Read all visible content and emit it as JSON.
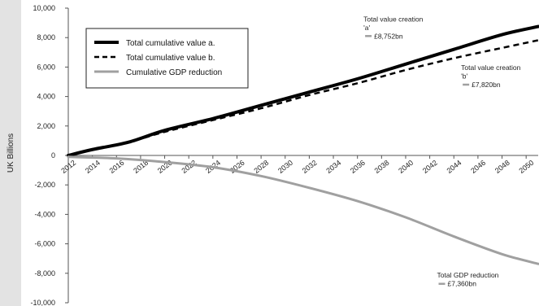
{
  "chart_data": {
    "type": "line",
    "ylabel": "UK Billions",
    "ylim": [
      -10000,
      10000
    ],
    "yticks": [
      10000,
      8000,
      6000,
      4000,
      2000,
      0,
      -2000,
      -4000,
      -6000,
      -8000,
      -10000
    ],
    "ytick_labels": [
      "10,000",
      "8,000",
      "6,000",
      "4,000",
      "2,000",
      "0",
      "-2,000",
      "-4,000",
      "-6,000",
      "-8,000",
      "-10,000"
    ],
    "xlim": [
      2012,
      2051
    ],
    "xticks": [
      2012,
      2014,
      2016,
      2018,
      2020,
      2022,
      2024,
      2026,
      2028,
      2030,
      2032,
      2034,
      2036,
      2038,
      2040,
      2042,
      2044,
      2046,
      2048,
      2050
    ],
    "legend_position": "top-left",
    "series": [
      {
        "name": "Total cumulative value a.",
        "style": "solid-thick",
        "color": "#000000",
        "x": [
          2012,
          2014,
          2017,
          2020,
          2024,
          2028,
          2032,
          2036,
          2040,
          2044,
          2048,
          2051
        ],
        "y": [
          0,
          400,
          900,
          1700,
          2500,
          3400,
          4300,
          5200,
          6200,
          7200,
          8200,
          8752
        ]
      },
      {
        "name": "Total cumulative value b.",
        "style": "dashed",
        "color": "#000000",
        "x": [
          2012,
          2014,
          2017,
          2020,
          2024,
          2028,
          2032,
          2036,
          2040,
          2044,
          2048,
          2051
        ],
        "y": [
          0,
          400,
          900,
          1600,
          2400,
          3200,
          4100,
          4900,
          5800,
          6600,
          7300,
          7820
        ]
      },
      {
        "name": "Cumulative GDP reduction",
        "style": "solid",
        "color": "#a0a0a0",
        "x": [
          2012,
          2016,
          2020,
          2024,
          2028,
          2032,
          2036,
          2040,
          2044,
          2048,
          2051
        ],
        "y": [
          -100,
          -200,
          -450,
          -800,
          -1400,
          -2200,
          -3100,
          -4200,
          -5500,
          -6700,
          -7360
        ]
      }
    ],
    "annotations": [
      {
        "lines": [
          "Total value creation",
          "'a'",
          "£8,752bn"
        ],
        "x": 2036.5,
        "y": 9100
      },
      {
        "lines": [
          "Total value creation",
          "'b'",
          "£7,820bn"
        ],
        "x": 2044.6,
        "y": 5800
      },
      {
        "lines": [
          "Total GDP reduction",
          "£7,360bn"
        ],
        "x": 2042.6,
        "y": -8300
      }
    ]
  }
}
